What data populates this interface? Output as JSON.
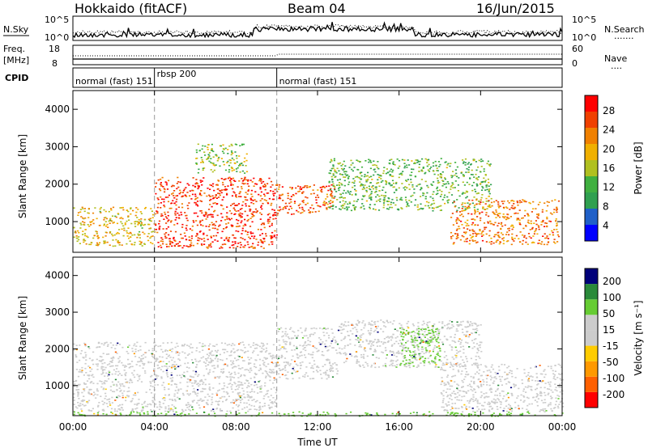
{
  "header": {
    "station": "Hokkaido (fitACF)",
    "beam": "Beam 04",
    "date": "16/Jun/2015"
  },
  "top_panel": {
    "left_label": "N.Sky",
    "left_ticks": [
      "10^5",
      "10^0"
    ],
    "right_ticks": [
      "10^5",
      "10^0"
    ],
    "right_label": "N.Search",
    "right_legend": "......."
  },
  "freq_panel": {
    "label_line1": "Freq.",
    "label_line2": "[MHz]",
    "left_ticks": [
      "18",
      "8"
    ],
    "right_ticks": [
      "60",
      "0"
    ],
    "right_label": "Nave",
    "right_legend": "...."
  },
  "cpid": {
    "label": "CPID",
    "segments": [
      {
        "start_hour": 0,
        "text": "normal (fast) 151"
      },
      {
        "start_hour": 4,
        "text": "rbsp 200"
      },
      {
        "start_hour": 10,
        "text": "normal (fast) 151"
      }
    ]
  },
  "colors": {
    "power_scale": [
      "#0000ff",
      "#2060c8",
      "#30a050",
      "#40b040",
      "#b0c020",
      "#f0b000",
      "#f08000",
      "#f04000",
      "#ff0000"
    ],
    "velocity_scale": [
      "#ff0000",
      "#ff6000",
      "#ff9900",
      "#ffcc00",
      "#cccccc",
      "#cccccc",
      "#66cc33",
      "#2a8a3a",
      "#00007a"
    ],
    "ground_scatter": "#bbbbbb"
  },
  "chart_data": [
    {
      "type": "heatmap",
      "title": "",
      "xlabel": "",
      "ylabel": "Slant Range [km]",
      "x_range_hours": [
        0,
        24
      ],
      "ylim": [
        180,
        4500
      ],
      "y_ticks": [
        "4000",
        "3000",
        "2000",
        "1000"
      ],
      "colorbar": {
        "label": "Power [dB]",
        "ticks": [
          "28",
          "24",
          "20",
          "16",
          "12",
          "8",
          "4"
        ],
        "range": [
          0,
          30
        ]
      },
      "features": [
        {
          "t0": 0.0,
          "t1": 4.0,
          "r0": 350,
          "r1": 1400,
          "value": 18
        },
        {
          "t0": 4.0,
          "t1": 10.0,
          "r0": 300,
          "r1": 2200,
          "value": 26
        },
        {
          "t0": 6.0,
          "t1": 8.5,
          "r0": 2300,
          "r1": 3100,
          "value": 14
        },
        {
          "t0": 10.0,
          "t1": 12.8,
          "r0": 1200,
          "r1": 2000,
          "value": 24
        },
        {
          "t0": 12.5,
          "t1": 20.5,
          "r0": 1300,
          "r1": 2700,
          "value": 12
        },
        {
          "t0": 18.5,
          "t1": 23.8,
          "r0": 400,
          "r1": 1600,
          "value": 22
        }
      ]
    },
    {
      "type": "heatmap",
      "title": "",
      "xlabel": "Time UT",
      "ylabel": "Slant Range [km]",
      "x_range_hours": [
        0,
        24
      ],
      "x_ticks": [
        "00:00",
        "04:00",
        "08:00",
        "12:00",
        "16:00",
        "20:00",
        "00:00"
      ],
      "ylim": [
        180,
        4500
      ],
      "y_ticks": [
        "4000",
        "3000",
        "2000",
        "1000"
      ],
      "colorbar": {
        "label": "Velocity [m s⁻¹]",
        "ticks": [
          "200",
          "100",
          "50",
          "15",
          "-15",
          "-50",
          "-100",
          "-200"
        ],
        "range": [
          -250,
          250
        ]
      },
      "features": [
        {
          "t0": 0.0,
          "t1": 10.0,
          "r0": 300,
          "r1": 2200,
          "value": 0
        },
        {
          "t0": 10.0,
          "t1": 13.0,
          "r0": 1200,
          "r1": 2600,
          "value": 0
        },
        {
          "t0": 13.0,
          "t1": 20.0,
          "r0": 1500,
          "r1": 2800,
          "value": 0
        },
        {
          "t0": 16.0,
          "t1": 18.0,
          "r0": 1500,
          "r1": 2600,
          "value": 40
        },
        {
          "t0": 18.0,
          "t1": 24.0,
          "r0": 300,
          "r1": 1600,
          "value": 0
        },
        {
          "t0": 0.0,
          "t1": 24.0,
          "r0": 180,
          "r1": 300,
          "value": 30
        }
      ]
    }
  ]
}
